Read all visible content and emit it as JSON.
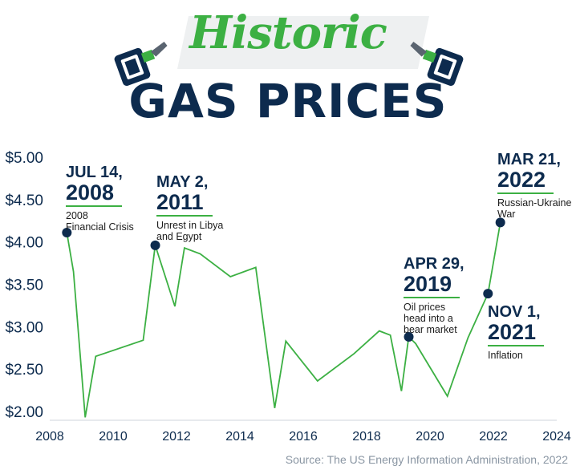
{
  "header": {
    "script_title": "Historic",
    "main_title": "GAS PRICES",
    "left_icon": "gas-pump-nozzle-icon",
    "right_icon": "gas-pump-nozzle-icon"
  },
  "colors": {
    "line": "#3cb043",
    "marker": "#0d2b4e",
    "title": "#0d2b4e",
    "accent": "#3cb043"
  },
  "annotations": [
    {
      "date_line1": "JUL 14,",
      "date_line2": "2008",
      "desc": [
        "2008",
        "Financial Crisis"
      ]
    },
    {
      "date_line1": "MAY 2,",
      "date_line2": "2011",
      "desc": [
        "Unrest in Libya",
        "and Egypt"
      ]
    },
    {
      "date_line1": "APR 29,",
      "date_line2": "2019",
      "desc": [
        "Oil prices",
        "head into a",
        "bear market"
      ]
    },
    {
      "date_line1": "NOV 1,",
      "date_line2": "2021",
      "desc": [
        "Inflation"
      ]
    },
    {
      "date_line1": "MAR 21,",
      "date_line2": "2022",
      "desc": [
        "Russian-Ukraine",
        "War"
      ]
    }
  ],
  "source": "Source: The US Energy Information Administration, 2022",
  "chart_data": {
    "type": "line",
    "title": "",
    "xlabel": "",
    "ylabel": "",
    "xlim": [
      2008,
      2024
    ],
    "ylim": [
      2.0,
      5.0
    ],
    "x_ticks": [
      "2008",
      "2010",
      "2012",
      "2014",
      "2016",
      "2018",
      "2020",
      "2022",
      "2024"
    ],
    "y_ticks": [
      "$2.00",
      "$2.50",
      "$3.00",
      "$3.50",
      "$4.00",
      "$4.50",
      "$5.00"
    ],
    "grid": false,
    "series": [
      {
        "x": [
          2008.54,
          2008.75,
          2009.12,
          2009.45,
          2010.95,
          2011.33,
          2011.95,
          2012.25,
          2012.75,
          2013.7,
          2014.5,
          2015.1,
          2015.45,
          2016.45,
          2017.6,
          2018.4,
          2018.75,
          2019.1,
          2019.33,
          2019.55,
          2020.55,
          2021.2,
          2021.83,
          2022.22
        ],
        "y": [
          4.11,
          3.65,
          1.93,
          2.65,
          2.84,
          3.96,
          3.24,
          3.93,
          3.86,
          3.59,
          3.7,
          2.04,
          2.83,
          2.36,
          2.68,
          2.95,
          2.9,
          2.24,
          2.88,
          2.8,
          2.18,
          2.87,
          3.39,
          4.23
        ]
      }
    ],
    "markers": [
      {
        "x": 2008.54,
        "y": 4.11
      },
      {
        "x": 2011.33,
        "y": 3.96
      },
      {
        "x": 2019.33,
        "y": 2.88
      },
      {
        "x": 2021.83,
        "y": 3.39
      },
      {
        "x": 2022.22,
        "y": 4.23
      }
    ]
  }
}
